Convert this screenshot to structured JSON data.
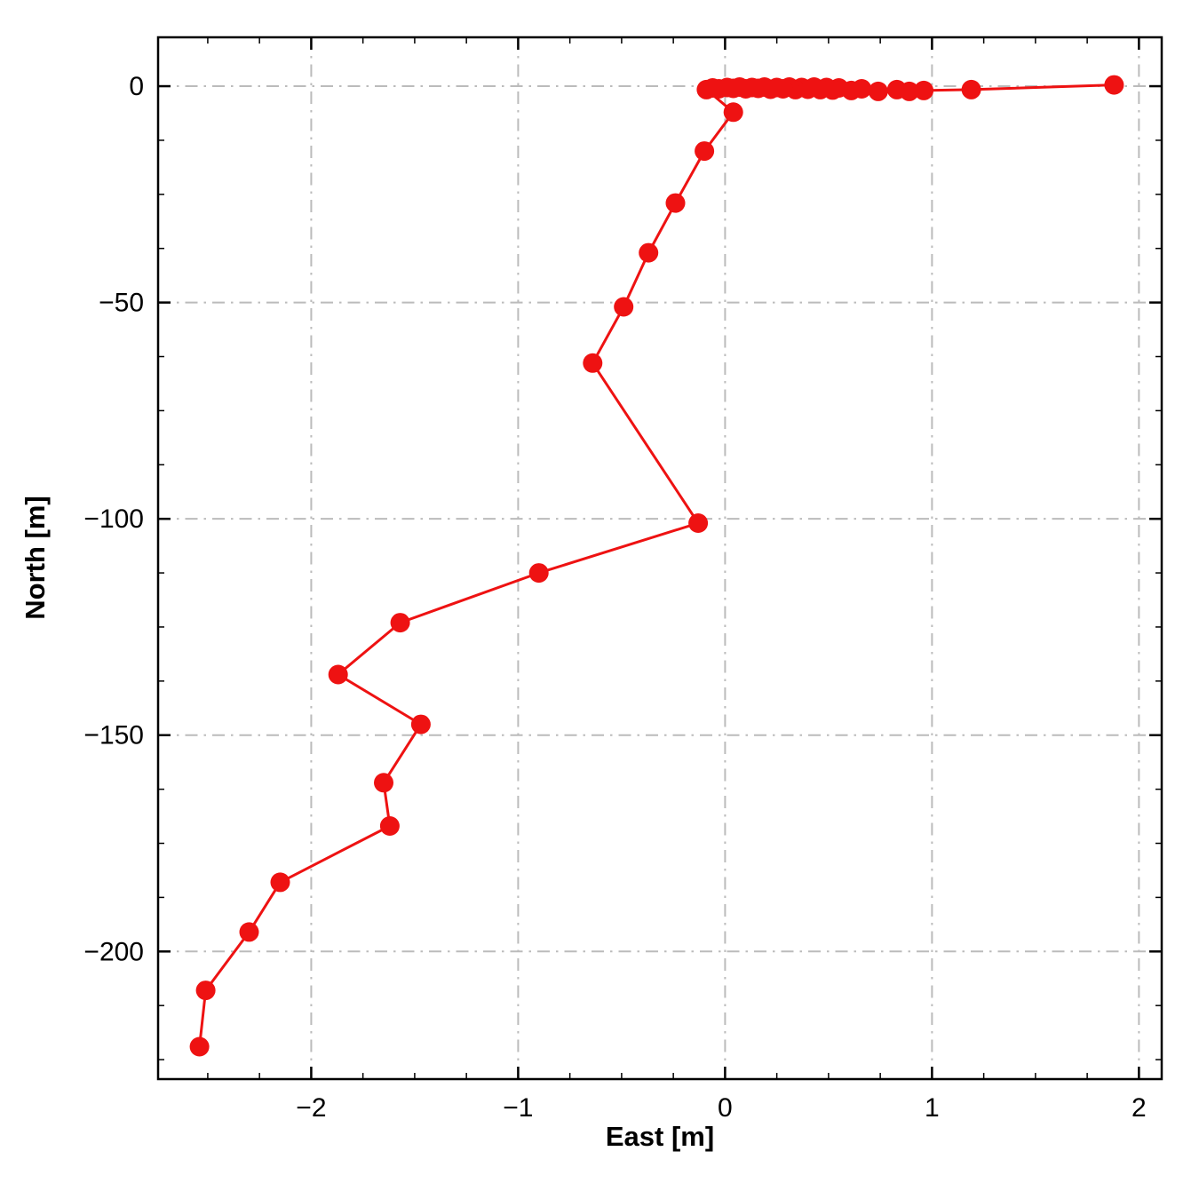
{
  "chart_data": {
    "type": "line",
    "title": "",
    "xlabel": "East [m]",
    "ylabel": "North [m]",
    "xlim": [
      -2.74,
      2.11
    ],
    "ylim": [
      -229.5,
      11.3
    ],
    "xticks": [
      -2,
      -1,
      0,
      1,
      2
    ],
    "yticks": [
      0,
      -50,
      -100,
      -150,
      -200
    ],
    "x_minor_step": 0.25,
    "y_minor_step": 12.5,
    "grid": true,
    "grid_style": "dash-dot",
    "grid_color": "#bbbbbb",
    "line_color": "#ee1212",
    "marker_color": "#ee1212",
    "marker_radius": 11,
    "line_width": 3,
    "legend": "none",
    "points": [
      [
        1.88,
        0.3
      ],
      [
        1.19,
        -0.8
      ],
      [
        0.96,
        -1.0
      ],
      [
        0.89,
        -1.2
      ],
      [
        0.83,
        -0.8
      ],
      [
        0.74,
        -1.2
      ],
      [
        0.66,
        -0.6
      ],
      [
        0.61,
        -1.0
      ],
      [
        0.55,
        -0.4
      ],
      [
        0.52,
        -0.9
      ],
      [
        0.49,
        -0.3
      ],
      [
        0.46,
        -0.8
      ],
      [
        0.43,
        -0.2
      ],
      [
        0.4,
        -0.7
      ],
      [
        0.37,
        -0.3
      ],
      [
        0.34,
        -0.8
      ],
      [
        0.31,
        -0.2
      ],
      [
        0.28,
        -0.6
      ],
      [
        0.25,
        -0.3
      ],
      [
        0.22,
        -0.7
      ],
      [
        0.19,
        -0.2
      ],
      [
        0.16,
        -0.5
      ],
      [
        0.13,
        -0.3
      ],
      [
        0.1,
        -0.6
      ],
      [
        0.07,
        -0.2
      ],
      [
        0.04,
        -0.5
      ],
      [
        0.01,
        -0.3
      ],
      [
        -0.03,
        -0.6
      ],
      [
        -0.06,
        -0.4
      ],
      [
        -0.09,
        -0.8
      ],
      [
        0.04,
        -6
      ],
      [
        -0.1,
        -15
      ],
      [
        -0.24,
        -27
      ],
      [
        -0.37,
        -38.5
      ],
      [
        -0.49,
        -51
      ],
      [
        -0.64,
        -64
      ],
      [
        -0.13,
        -101
      ],
      [
        -0.9,
        -112.5
      ],
      [
        -1.57,
        -124
      ],
      [
        -1.87,
        -136
      ],
      [
        -1.47,
        -147.5
      ],
      [
        -1.65,
        -161
      ],
      [
        -1.62,
        -171
      ],
      [
        -2.15,
        -184
      ],
      [
        -2.3,
        -195.5
      ],
      [
        -2.51,
        -209
      ],
      [
        -2.54,
        -222
      ]
    ]
  }
}
